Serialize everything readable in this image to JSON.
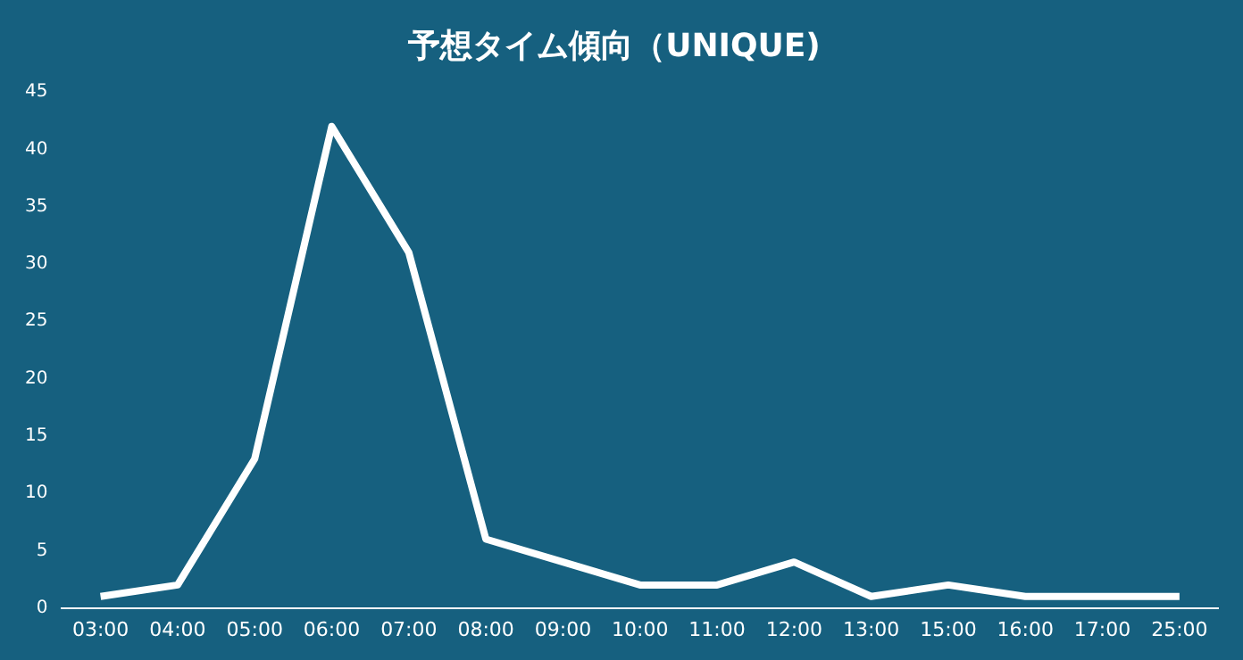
{
  "chart_data": {
    "type": "line",
    "title": "予想タイム傾向（UNIQUE)",
    "categories": [
      "03:00",
      "04:00",
      "05:00",
      "06:00",
      "07:00",
      "08:00",
      "09:00",
      "10:00",
      "11:00",
      "12:00",
      "13:00",
      "15:00",
      "16:00",
      "17:00",
      "25:00"
    ],
    "series": [
      {
        "color": "#ffffff",
        "values": [
          1,
          2,
          13,
          42,
          31,
          6,
          4,
          2,
          2,
          4,
          1,
          2,
          1,
          1,
          1
        ]
      }
    ],
    "ylim": [
      0,
      45
    ],
    "yticks": [
      0,
      5,
      10,
      15,
      20,
      25,
      30,
      35,
      40,
      45
    ],
    "grid": false,
    "legend": false,
    "marker": "none",
    "line_style": "solid"
  }
}
